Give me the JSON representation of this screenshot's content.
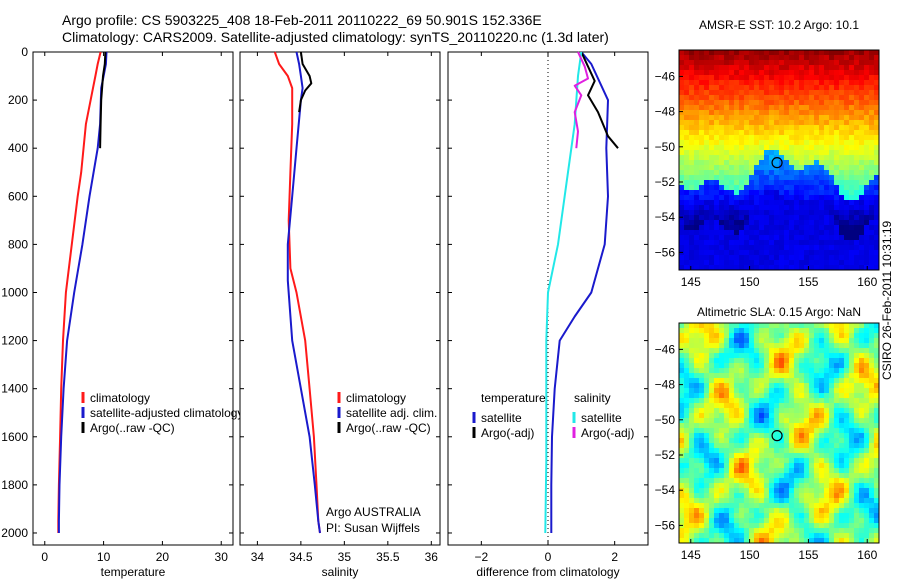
{
  "header": {
    "line1": "Argo profile: CS 5903225_408 18-Feb-2011 20110222_69 50.901S 152.336E",
    "line2": "Climatology: CARS2009. Satellite-adjusted climatology: synTS_20110220.nc (1.3d later)"
  },
  "stamp": "CSIRO 26-Feb-2011 10:31:19",
  "colors": {
    "red": "#ff1a1a",
    "blue": "#1a1acc",
    "black": "#000000",
    "cyan": "#22e8e8",
    "magenta": "#e020e0"
  },
  "chart_data": [
    {
      "type": "line",
      "xlabel": "temperature",
      "ylim": [
        0,
        2050
      ],
      "y_reversed": true,
      "yticks": [
        0,
        200,
        400,
        600,
        800,
        1000,
        1200,
        1400,
        1600,
        1800,
        2000
      ],
      "xlim": [
        -2,
        32
      ],
      "xticks": [
        0,
        10,
        20,
        30
      ],
      "legend": [
        "climatology",
        "satellite-adjusted climatology",
        "Argo(..raw -QC)"
      ],
      "legend_placement": "lower-right",
      "series": [
        {
          "name": "climatology",
          "color": "red",
          "x": [
            9.5,
            9.0,
            8.6,
            8.2,
            7.0,
            6.2,
            5.6,
            4.6,
            3.6,
            3.1,
            2.8,
            2.6,
            2.4,
            2.3,
            2.3
          ],
          "y": [
            0,
            50,
            100,
            150,
            300,
            500,
            600,
            800,
            1000,
            1200,
            1400,
            1600,
            1800,
            1950,
            2000
          ]
        },
        {
          "name": "satellite-adjusted climatology",
          "color": "blue",
          "x": [
            10.5,
            10.4,
            10.0,
            9.6,
            9.4,
            9.0,
            7.6,
            6.4,
            5.0,
            3.8,
            3.2,
            2.8,
            2.5,
            2.4,
            2.4
          ],
          "y": [
            0,
            50,
            100,
            150,
            300,
            400,
            600,
            800,
            1000,
            1200,
            1400,
            1600,
            1800,
            1950,
            2000
          ]
        },
        {
          "name": "Argo(..raw -QC)",
          "color": "black",
          "x": [
            10.3,
            10.2,
            9.9,
            9.6,
            9.5,
            9.4
          ],
          "y": [
            0,
            50,
            100,
            200,
            300,
            400
          ]
        }
      ]
    },
    {
      "type": "line",
      "xlabel": "salinity",
      "ylim": [
        0,
        2050
      ],
      "y_reversed": true,
      "xlim": [
        33.8,
        36.1
      ],
      "xticks": [
        34,
        34.5,
        35,
        35.5,
        36
      ],
      "legend": [
        "climatology",
        "satellite adj. clim.",
        "Argo(..raw -QC)"
      ],
      "legend_placement": "lower-right",
      "annotations": [
        "Argo AUSTRALIA",
        "PI: Susan Wijffels"
      ],
      "series": [
        {
          "name": "climatology",
          "color": "red",
          "x": [
            34.2,
            34.25,
            34.35,
            34.4,
            34.4,
            34.38,
            34.36,
            34.38,
            34.45,
            34.55,
            34.6,
            34.65,
            34.68,
            34.7,
            34.72
          ],
          "y": [
            0,
            50,
            100,
            150,
            300,
            500,
            700,
            900,
            1000,
            1200,
            1400,
            1600,
            1800,
            1950,
            2000
          ]
        },
        {
          "name": "satellite adj. clim.",
          "color": "blue",
          "x": [
            34.45,
            34.48,
            34.5,
            34.52,
            34.5,
            34.45,
            34.4,
            34.35,
            34.35,
            34.4,
            34.5,
            34.6,
            34.66,
            34.7,
            34.72
          ],
          "y": [
            0,
            50,
            100,
            150,
            200,
            400,
            600,
            800,
            950,
            1200,
            1400,
            1600,
            1800,
            1950,
            2000
          ]
        },
        {
          "name": "Argo(..raw -QC)",
          "color": "black",
          "x": [
            34.5,
            34.52,
            34.6,
            34.62,
            34.55,
            34.5,
            34.48
          ],
          "y": [
            0,
            50,
            100,
            130,
            160,
            200,
            250
          ]
        }
      ]
    },
    {
      "type": "line",
      "xlabel": "difference from climatology",
      "ylim": [
        0,
        2050
      ],
      "y_reversed": true,
      "xlim": [
        -3.0,
        3.0
      ],
      "xticks": [
        -2,
        0,
        2
      ],
      "reference_line_x": 0,
      "legend_groups": [
        {
          "title": "temperature",
          "entries": [
            "satellite",
            "Argo(-adj)"
          ]
        },
        {
          "title": "salinity",
          "entries": [
            "satellite",
            "Argo(-adj)"
          ]
        }
      ],
      "legend_placement": "lower-center",
      "series": [
        {
          "name": "temperature satellite",
          "color": "blue",
          "x": [
            1.0,
            1.3,
            1.8,
            1.75,
            1.8,
            1.7,
            1.3,
            0.8,
            0.35,
            0.2,
            0.12,
            0.1,
            0.1
          ],
          "y": [
            0,
            50,
            200,
            400,
            600,
            800,
            1000,
            1100,
            1200,
            1400,
            1600,
            1800,
            2000
          ]
        },
        {
          "name": "temperature Argo(-adj)",
          "color": "black",
          "x": [
            1.0,
            1.2,
            1.4,
            1.2,
            1.5,
            1.8,
            2.1
          ],
          "y": [
            0,
            60,
            120,
            180,
            250,
            350,
            400
          ]
        },
        {
          "name": "salinity satellite",
          "color": "cyan",
          "x": [
            1.0,
            0.9,
            0.8,
            0.6,
            0.3,
            0.0,
            -0.05,
            -0.05,
            -0.05,
            -0.08
          ],
          "y": [
            0,
            100,
            300,
            500,
            800,
            1000,
            1200,
            1400,
            1700,
            2000
          ]
        },
        {
          "name": "salinity Argo(-adj)",
          "color": "magenta",
          "x": [
            0.9,
            1.1,
            1.2,
            0.8,
            1.0,
            0.8,
            0.9,
            0.85
          ],
          "y": [
            0,
            60,
            110,
            140,
            180,
            250,
            330,
            400
          ]
        }
      ]
    },
    {
      "type": "heatmap",
      "title": "AMSR-E SST: 10.2 Argo: 10.1",
      "xlim": [
        144,
        161
      ],
      "ylim": [
        -57,
        -44.5
      ],
      "xticks": [
        145,
        150,
        155,
        160
      ],
      "yticks": [
        -46,
        -48,
        -50,
        -52,
        -54,
        -56
      ],
      "marker": {
        "lon": 152.336,
        "lat": -50.901
      },
      "colormap": "jet"
    },
    {
      "type": "heatmap",
      "title": "Altimetric SLA: 0.15 Argo: NaN",
      "xlim": [
        144,
        161
      ],
      "ylim": [
        -57,
        -44.5
      ],
      "xticks": [
        145,
        150,
        155,
        160
      ],
      "yticks": [
        -46,
        -48,
        -50,
        -52,
        -54,
        -56
      ],
      "marker": {
        "lon": 152.336,
        "lat": -50.901
      },
      "colormap": "jet"
    }
  ]
}
